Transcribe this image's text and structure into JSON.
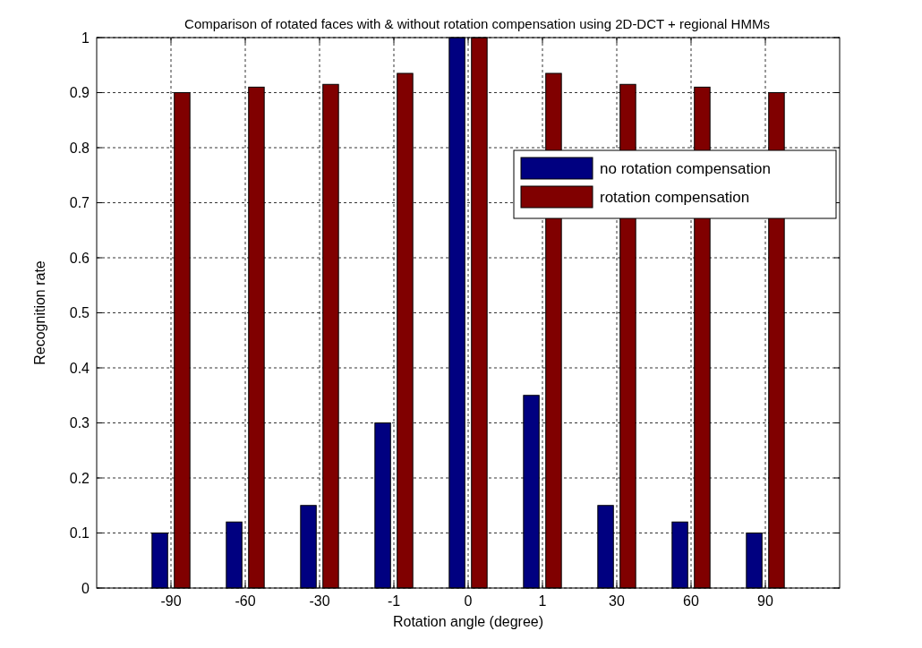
{
  "chart_data": {
    "type": "bar",
    "title": "Comparison of rotated faces with & without rotation compensation using 2D-DCT + regional HMMs",
    "xlabel": "Rotation angle (degree)",
    "ylabel": "Recognition rate",
    "categories": [
      "-90",
      "-60",
      "-30",
      "-1",
      "0",
      "1",
      "30",
      "60",
      "90"
    ],
    "series": [
      {
        "name": "no rotation compensation",
        "color": "#000080",
        "values": [
          0.1,
          0.12,
          0.15,
          0.3,
          1,
          0.35,
          0.15,
          0.12,
          0.1
        ]
      },
      {
        "name": "rotation compensation",
        "color": "#800000",
        "values": [
          0.9,
          0.91,
          0.915,
          0.935,
          1,
          0.935,
          0.915,
          0.91,
          0.9
        ]
      }
    ],
    "ylim": [
      0,
      1
    ],
    "yticks": [
      0,
      0.1,
      0.2,
      0.3,
      0.4,
      0.5,
      0.6,
      0.7,
      0.8,
      0.9,
      1
    ],
    "grid": true,
    "legend": "top right"
  }
}
